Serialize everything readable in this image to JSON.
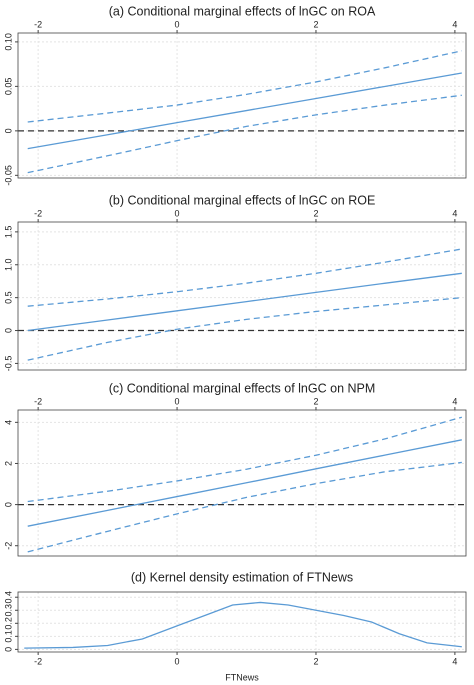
{
  "chart_data": [
    {
      "type": "line",
      "title": "(a) Conditional marginal effects of lnGC on ROA",
      "x": [
        -2.15,
        -1,
        0,
        1,
        2,
        3,
        4.1
      ],
      "series": [
        {
          "color": "#5b9bd5",
          "style": "solid",
          "values": [
            -0.02,
            -0.0044,
            0.0092,
            0.0228,
            0.0364,
            0.05,
            0.065
          ]
        },
        {
          "color": "#5b9bd5",
          "style": "dashed",
          "values": [
            0.01,
            0.02,
            0.029,
            0.041,
            0.055,
            0.071,
            0.09
          ]
        },
        {
          "color": "#5b9bd5",
          "style": "dashed",
          "values": [
            -0.047,
            -0.028,
            -0.011,
            0.005,
            0.018,
            0.029,
            0.04
          ]
        }
      ],
      "xlim": [
        -2.29,
        4.16
      ],
      "xticks": [
        -2,
        0,
        2,
        4
      ],
      "xaxis_position": "top",
      "ylim": [
        -0.053,
        0.11
      ],
      "yticks": [
        -0.05,
        0,
        0.05,
        {
          "value": 0.1,
          "label": "0.10"
        }
      ],
      "reference_line": 0,
      "grid": true
    },
    {
      "type": "line",
      "title": "(b) Conditional marginal effects of lnGC on ROE",
      "x": [
        -2.15,
        -1,
        0,
        1,
        2,
        3,
        4.1
      ],
      "series": [
        {
          "color": "#5b9bd5",
          "style": "solid",
          "values": [
            0,
            0.16,
            0.3,
            0.44,
            0.58,
            0.72,
            0.87
          ]
        },
        {
          "color": "#5b9bd5",
          "style": "dashed",
          "values": [
            0.37,
            0.48,
            0.59,
            0.72,
            0.87,
            1.04,
            1.24
          ]
        },
        {
          "color": "#5b9bd5",
          "style": "dashed",
          "values": [
            -0.45,
            -0.18,
            0.02,
            0.17,
            0.29,
            0.39,
            0.5
          ]
        }
      ],
      "xlim": [
        -2.29,
        4.16
      ],
      "xticks": [
        -2,
        0,
        2,
        4
      ],
      "xaxis_position": "top",
      "ylim": [
        -0.6,
        1.65
      ],
      "yticks": [
        -0.5,
        0,
        0.5,
        {
          "value": 1,
          "label": "1.0"
        },
        1.5
      ],
      "reference_line": 0,
      "grid": true
    },
    {
      "type": "line",
      "title": "(c) Conditional marginal effects of lnGC on NPM",
      "x": [
        -2.15,
        -1,
        0,
        1,
        2,
        3,
        4.1
      ],
      "series": [
        {
          "color": "#5b9bd5",
          "style": "solid",
          "values": [
            -1.05,
            -0.28,
            0.39,
            1.06,
            1.74,
            2.41,
            3.15
          ]
        },
        {
          "color": "#5b9bd5",
          "style": "dashed",
          "values": [
            0.15,
            0.65,
            1.15,
            1.72,
            2.4,
            3.2,
            4.25
          ]
        },
        {
          "color": "#5b9bd5",
          "style": "dashed",
          "values": [
            -2.3,
            -1.3,
            -0.45,
            0.35,
            1.02,
            1.6,
            2.05
          ]
        }
      ],
      "xlim": [
        -2.29,
        4.16
      ],
      "xticks": [
        -2,
        0,
        2,
        4
      ],
      "xaxis_position": "top",
      "ylim": [
        -2.5,
        4.6
      ],
      "yticks": [
        -2,
        0,
        2,
        4
      ],
      "reference_line": 0,
      "grid": true
    },
    {
      "type": "line",
      "title": "(d) Kernel density estimation of FTNews",
      "xlabel": "FTNews",
      "x": [
        -2.2,
        -1.5,
        -1,
        -0.5,
        0,
        0.5,
        0.8,
        1.2,
        1.6,
        2,
        2.4,
        2.8,
        3.2,
        3.6,
        4.1
      ],
      "series": [
        {
          "color": "#5b9bd5",
          "style": "solid",
          "values": [
            0.01,
            0.015,
            0.03,
            0.08,
            0.18,
            0.28,
            0.34,
            0.36,
            0.34,
            0.3,
            0.26,
            0.21,
            0.12,
            0.05,
            0.02
          ]
        }
      ],
      "xlim": [
        -2.29,
        4.16
      ],
      "xticks": [
        -2,
        0,
        2,
        4
      ],
      "xaxis_position": "bottom",
      "ylim": [
        -0.02,
        0.44
      ],
      "yticks": [
        0,
        0.1,
        0.2,
        0.3,
        0.4
      ],
      "grid": true
    }
  ]
}
